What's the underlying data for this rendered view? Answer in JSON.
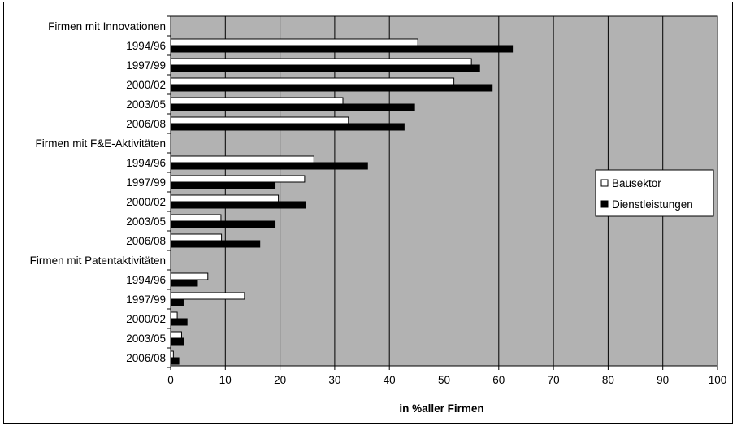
{
  "chart_data": {
    "type": "bar",
    "orientation": "horizontal",
    "groups": [
      {
        "label": "Firmen mit Innovationen",
        "periods": [
          "1994/96",
          "1997/99",
          "2000/02",
          "2003/05",
          "2006/08"
        ]
      },
      {
        "label": "Firmen mit F&E-Aktivitäten",
        "periods": [
          "1994/96",
          "1997/99",
          "2000/02",
          "2003/05",
          "2006/08"
        ]
      },
      {
        "label": "Firmen mit Patentaktivitäten",
        "periods": [
          "1994/96",
          "1997/99",
          "2000/02",
          "2003/05",
          "2006/08"
        ]
      }
    ],
    "series": [
      {
        "name": "Bausektor",
        "color": "#ffffff",
        "values": [
          45.2,
          55.0,
          51.8,
          31.5,
          32.5,
          26.2,
          24.5,
          19.7,
          9.2,
          9.3,
          6.8,
          13.5,
          1.2,
          2.0,
          0.5
        ]
      },
      {
        "name": "Dienstleistungen",
        "color": "#000000",
        "values": [
          62.5,
          56.5,
          58.8,
          44.6,
          42.7,
          36.0,
          19.1,
          24.7,
          19.1,
          16.3,
          4.9,
          2.3,
          3.0,
          2.4,
          1.5
        ]
      }
    ],
    "xlabel": "in %aller Firmen",
    "xlim": [
      0,
      100
    ],
    "xticks": [
      0,
      10,
      20,
      30,
      40,
      50,
      60,
      70,
      80,
      90,
      100
    ],
    "plot_background": "#b2b2b2",
    "grid": true,
    "legend_position": "right"
  }
}
